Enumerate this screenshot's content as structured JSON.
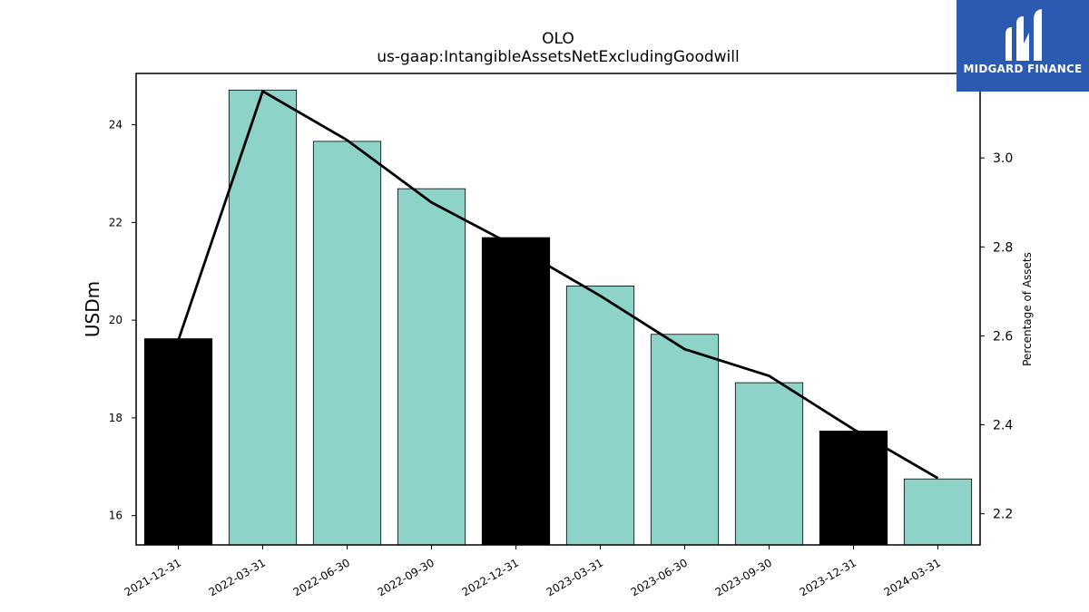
{
  "chart_data": {
    "type": "bar",
    "title": "OLO",
    "subtitle": "us-gaap:IntangibleAssetsNetExcludingGoodwill",
    "ylabel": "USDm",
    "y2label": "Percentage of Assets",
    "categories": [
      "2021-12-31",
      "2022-03-31",
      "2022-06-30",
      "2022-09-30",
      "2022-12-31",
      "2023-03-31",
      "2023-06-30",
      "2023-09-30",
      "2023-12-31",
      "2024-03-31"
    ],
    "values": [
      19.62,
      24.71,
      23.66,
      22.69,
      21.69,
      20.7,
      19.71,
      18.72,
      17.73,
      16.75
    ],
    "highlighted": [
      true,
      false,
      false,
      false,
      true,
      false,
      false,
      false,
      true,
      false
    ],
    "line_series": {
      "name": "Percentage of Assets",
      "values": [
        2.59,
        3.15,
        3.04,
        2.9,
        2.8,
        2.69,
        2.57,
        2.51,
        2.39,
        2.28
      ]
    },
    "ylim": [
      15.4,
      25.05
    ],
    "y2lim": [
      2.13,
      3.19
    ],
    "yticks": [
      16,
      18,
      20,
      22,
      24
    ],
    "y2ticks": [
      2.2,
      2.4,
      2.6,
      2.8,
      3.0
    ],
    "y2tick_labels": [
      "2.2",
      "2.4",
      "2.6",
      "2.8",
      "3.0"
    ],
    "grid": false,
    "legend": "none",
    "colors": {
      "bar": "#8dd3c7",
      "bar_highlight": "#000000",
      "line": "#000000",
      "edge": "#000000"
    }
  },
  "logo": {
    "text": "MIDGARD FINANCE",
    "background": "#2b5ab0"
  }
}
